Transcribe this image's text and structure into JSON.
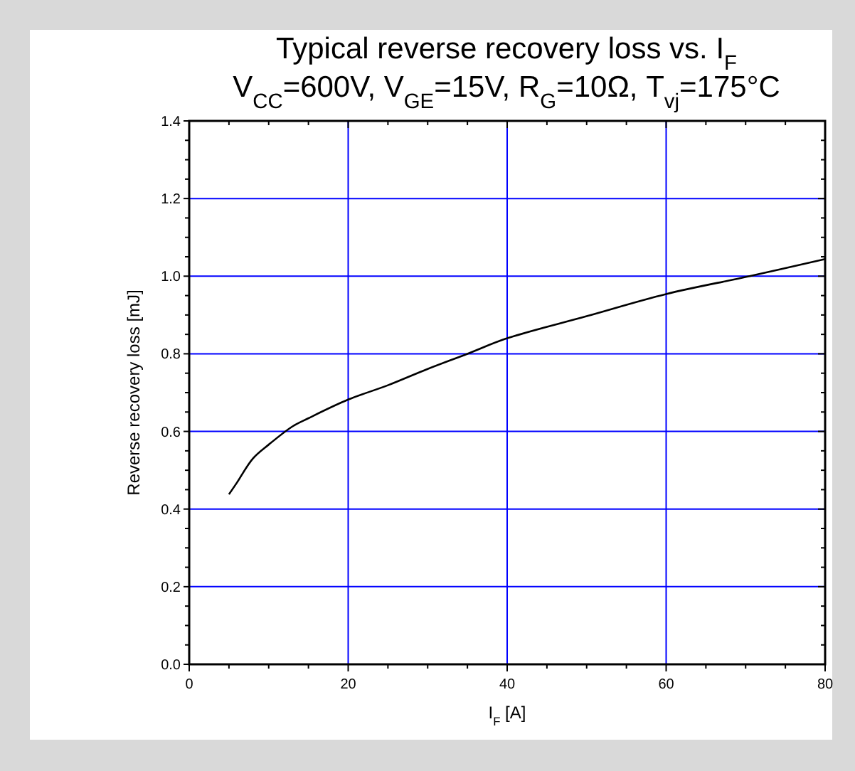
{
  "chart_data": {
    "type": "line",
    "title": "Typical reverse recovery loss vs. I$_{F}$",
    "subtitle": "V$_{CC}$=600V, V$_{GE}$=15V, R$_{G}$=10Ω, T$_{vj}$=175°C",
    "xlabel": "I$_{F}$ [A]",
    "ylabel": "Reverse recovery loss [mJ]",
    "xlim": [
      0,
      80
    ],
    "xticks": [
      0,
      20,
      40,
      60,
      80
    ],
    "ylim": [
      0,
      1.4
    ],
    "yticks": [
      {
        "value": 0,
        "label": "0.0"
      },
      0.2,
      0.4,
      0.6,
      0.8,
      {
        "value": 1,
        "label": "1.0"
      },
      1.2,
      1.4
    ],
    "grid": true,
    "marker": "none",
    "line_style": "solid",
    "series": [
      {
        "color": "#000000",
        "x": [
          5,
          6,
          8,
          10,
          13,
          15,
          20,
          25,
          30,
          35,
          40,
          50,
          60,
          70.5,
          80
        ],
        "values": [
          0.438,
          0.468,
          0.53,
          0.566,
          0.613,
          0.634,
          0.682,
          0.719,
          0.761,
          0.8,
          0.84,
          0.897,
          0.954,
          1.0,
          1.044
        ]
      }
    ]
  }
}
